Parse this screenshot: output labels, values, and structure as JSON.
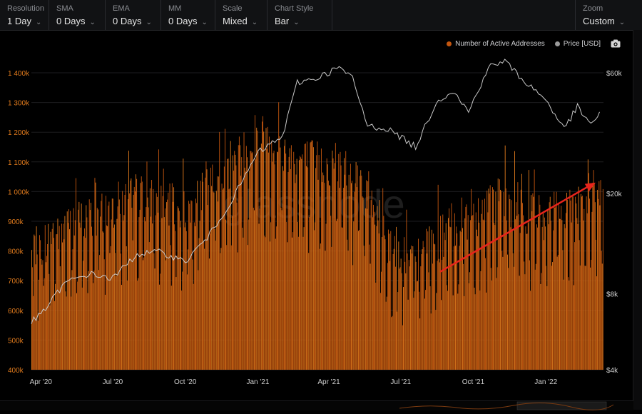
{
  "toolbar": {
    "resolution": {
      "label": "Resolution",
      "value": "1 Day"
    },
    "sma": {
      "label": "SMA",
      "value": "0 Days"
    },
    "ema": {
      "label": "EMA",
      "value": "0 Days"
    },
    "mm": {
      "label": "MM",
      "value": "0 Days"
    },
    "scale": {
      "label": "Scale",
      "value": "Mixed"
    },
    "chart_style": {
      "label": "Chart Style",
      "value": "Bar"
    },
    "zoom": {
      "label": "Zoom",
      "value": "Custom"
    }
  },
  "legend": {
    "active": "Number of Active Addresses",
    "price": "Price [USD]",
    "camera_icon": "camera-icon"
  },
  "watermark": "glassnode",
  "colors": {
    "bars": "#c4560f",
    "bars_light": "#e07a1c",
    "price_line": "#c9c9c9",
    "arrow": "#e8241c",
    "left_axis_text": "#e07a1c",
    "right_axis_text": "#cfcfcf"
  },
  "chart_data": {
    "type": "bar",
    "title": "",
    "x_ticks": [
      "Apr '20",
      "Jul '20",
      "Oct '20",
      "Jan '21",
      "Apr '21",
      "Jul '21",
      "Oct '21",
      "Jan '22"
    ],
    "x_range": [
      "2020-03-20",
      "2022-03-15"
    ],
    "y_left": {
      "label": "",
      "ticks": [
        "400k",
        "500k",
        "600k",
        "700k",
        "800k",
        "900k",
        "1 000k",
        "1 100k",
        "1 200k",
        "1 300k",
        "1 400k"
      ],
      "range": [
        400000,
        1450000
      ]
    },
    "y_right": {
      "label": "",
      "scale": "log",
      "ticks": [
        "$4k",
        "$8k",
        "$20k",
        "$60k"
      ],
      "range": [
        4000,
        75000
      ]
    },
    "grid": true,
    "legend_position": "top-right",
    "series": [
      {
        "name": "Number of Active Addresses",
        "type": "bar",
        "axis": "left",
        "anchors": [
          {
            "date": "2020-03-20",
            "value": 780000
          },
          {
            "date": "2020-04-15",
            "value": 850000
          },
          {
            "date": "2020-06-01",
            "value": 900000
          },
          {
            "date": "2020-08-01",
            "value": 980000
          },
          {
            "date": "2020-10-01",
            "value": 920000
          },
          {
            "date": "2020-11-15",
            "value": 1050000
          },
          {
            "date": "2021-01-05",
            "value": 1180000
          },
          {
            "date": "2021-02-15",
            "value": 1100000
          },
          {
            "date": "2021-04-15",
            "value": 1080000
          },
          {
            "date": "2021-05-15",
            "value": 1020000
          },
          {
            "date": "2021-06-15",
            "value": 820000
          },
          {
            "date": "2021-07-20",
            "value": 750000
          },
          {
            "date": "2021-09-01",
            "value": 870000
          },
          {
            "date": "2021-11-01",
            "value": 960000
          },
          {
            "date": "2022-01-01",
            "value": 900000
          },
          {
            "date": "2022-03-10",
            "value": 1000000
          }
        ]
      },
      {
        "name": "Price [USD]",
        "type": "line",
        "axis": "right",
        "points": [
          {
            "date": "2020-03-20",
            "value": 6200
          },
          {
            "date": "2020-04-01",
            "value": 6600
          },
          {
            "date": "2020-05-01",
            "value": 8800
          },
          {
            "date": "2020-06-01",
            "value": 9600
          },
          {
            "date": "2020-07-01",
            "value": 9200
          },
          {
            "date": "2020-08-01",
            "value": 11500
          },
          {
            "date": "2020-09-01",
            "value": 11700
          },
          {
            "date": "2020-10-01",
            "value": 10700
          },
          {
            "date": "2020-11-01",
            "value": 13700
          },
          {
            "date": "2020-12-01",
            "value": 19200
          },
          {
            "date": "2021-01-01",
            "value": 29000
          },
          {
            "date": "2021-02-01",
            "value": 33500
          },
          {
            "date": "2021-02-20",
            "value": 55000
          },
          {
            "date": "2021-03-15",
            "value": 57000
          },
          {
            "date": "2021-04-14",
            "value": 63000
          },
          {
            "date": "2021-05-01",
            "value": 57000
          },
          {
            "date": "2021-05-20",
            "value": 37000
          },
          {
            "date": "2021-06-15",
            "value": 36000
          },
          {
            "date": "2021-07-20",
            "value": 30500
          },
          {
            "date": "2021-08-15",
            "value": 46000
          },
          {
            "date": "2021-09-05",
            "value": 51000
          },
          {
            "date": "2021-09-25",
            "value": 42000
          },
          {
            "date": "2021-10-20",
            "value": 63000
          },
          {
            "date": "2021-11-10",
            "value": 67000
          },
          {
            "date": "2021-12-01",
            "value": 57000
          },
          {
            "date": "2022-01-01",
            "value": 47000
          },
          {
            "date": "2022-01-24",
            "value": 36000
          },
          {
            "date": "2022-02-10",
            "value": 44000
          },
          {
            "date": "2022-02-24",
            "value": 38000
          },
          {
            "date": "2022-03-05",
            "value": 39000
          },
          {
            "date": "2022-03-10",
            "value": 42000
          }
        ]
      }
    ],
    "annotations": [
      {
        "type": "arrow",
        "color": "#e8241c",
        "from": {
          "date": "2021-08-20",
          "value": 730000
        },
        "to": {
          "date": "2022-03-05",
          "value": 1030000
        }
      }
    ]
  }
}
